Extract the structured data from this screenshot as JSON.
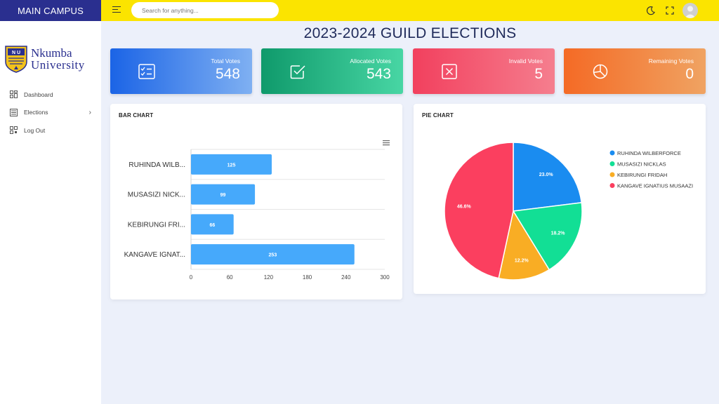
{
  "campus_label": "MAIN CAMPUS",
  "logo": {
    "line1": "Nkumba",
    "line2": "University",
    "crest_text": "N U"
  },
  "nav": [
    {
      "label": "Dashboard",
      "icon": "dashboard-icon"
    },
    {
      "label": "Elections",
      "icon": "elections-icon",
      "has_submenu": true
    },
    {
      "label": "Log Out",
      "icon": "logout-icon"
    }
  ],
  "search": {
    "placeholder": "Search for anything..."
  },
  "topbar_icons": [
    "menu-icon",
    "moon-icon",
    "fullscreen-icon",
    "avatar"
  ],
  "page_title": "2023-2024 GUILD ELECTIONS",
  "stats": [
    {
      "label": "Total Votes",
      "value": "548",
      "icon": "checklist-icon",
      "gradient": [
        "#1b64e6",
        "#7fb0f2"
      ]
    },
    {
      "label": "Allocated Votes",
      "value": "543",
      "icon": "checkbox-icon",
      "gradient": [
        "#0f9a6b",
        "#48d6a4"
      ]
    },
    {
      "label": "Invalid Votes",
      "value": "5",
      "icon": "x-box-icon",
      "gradient": [
        "#f2405e",
        "#f57e8e"
      ]
    },
    {
      "label": "Remaining Votes",
      "value": "0",
      "icon": "pie-icon",
      "gradient": [
        "#f46a25",
        "#f0a362"
      ]
    }
  ],
  "colors": {
    "sidebar_header": "#2a2f8f",
    "topbar": "#fbe400",
    "bar": "#46a9fb",
    "pie": [
      "#1a8cf0",
      "#12df95",
      "#f9ad24",
      "#fb3f5f"
    ]
  },
  "chart_data": [
    {
      "type": "bar",
      "title": "BAR CHART",
      "orientation": "horizontal",
      "categories": [
        "RUHINDA WILB...",
        "MUSASIZI NICK...",
        "KEBIRUNGI FRI...",
        "KANGAVE IGNAT..."
      ],
      "values": [
        125,
        99,
        66,
        253
      ],
      "xlim": [
        0,
        300
      ],
      "xticks": [
        "0",
        "60",
        "120",
        "180",
        "240",
        "300"
      ],
      "grid": true
    },
    {
      "type": "pie",
      "title": "PIE CHART",
      "labels": [
        "RUHINDA WILBERFORCE",
        "MUSASIZI NICKLAS",
        "KEBIRUNGI FRIDAH",
        "KANGAVE IGNATIUS MUSAAZI"
      ],
      "values": [
        125,
        99,
        66,
        253
      ],
      "percent_labels": [
        "23.0%",
        "18.2%",
        "12.2%",
        "46.6%"
      ],
      "legend": "right"
    }
  ]
}
